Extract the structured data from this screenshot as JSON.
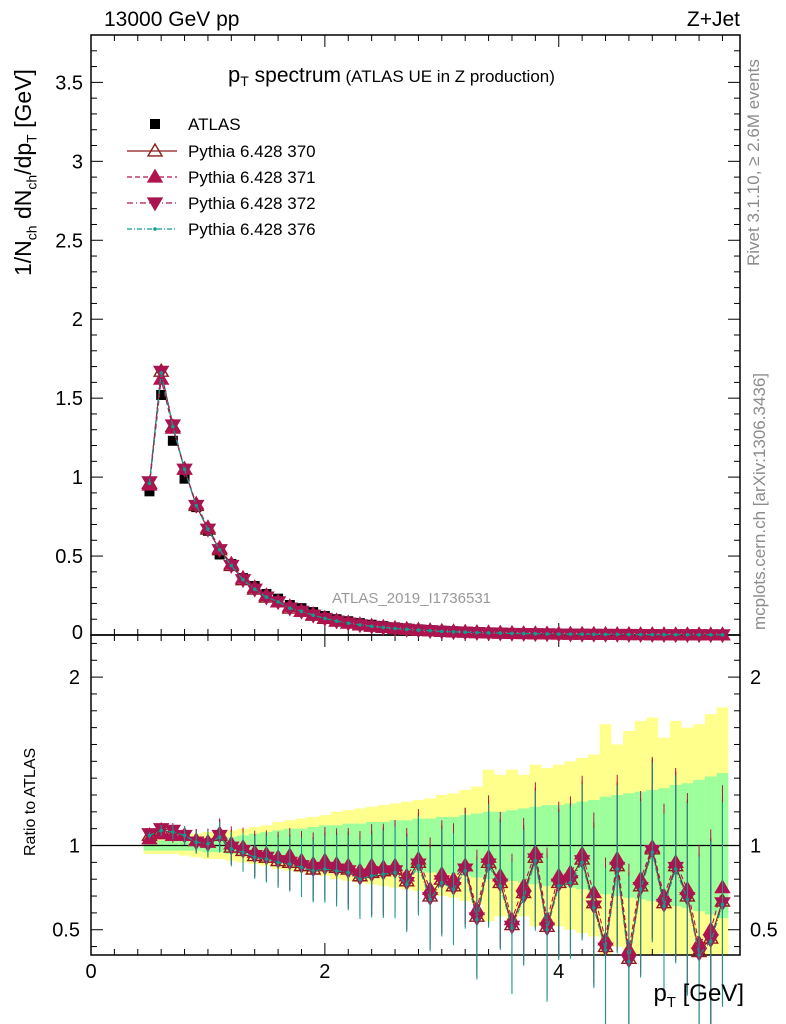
{
  "header": {
    "energy": "13000 GeV pp",
    "process": "Z+Jet"
  },
  "side_labels": {
    "rivet": "Rivet 3.1.10, ≥ 2.6M events",
    "mcplots": "mcplots.cern.ch [arXiv:1306.3436]"
  },
  "watermark": "ATLAS_2019_I1736531",
  "chart_data": [
    {
      "type": "line",
      "title_main": "p",
      "title_sub": "T",
      "title_rest": " spectrum",
      "title_paren": "(ATLAS UE in Z production)",
      "ylabel": "1/N_ch dN_ch/dp_T [GeV]",
      "xlabel": "p_T [GeV]",
      "xlim": [
        0,
        5.55
      ],
      "ylim": [
        0,
        3.8
      ],
      "xticks": [
        0,
        2,
        4
      ],
      "yticks": [
        0.5,
        1,
        1.5,
        2,
        2.5,
        3,
        3.5
      ],
      "legend_position": "top-left",
      "x": [
        0.5,
        0.6,
        0.7,
        0.8,
        0.9,
        1.0,
        1.1,
        1.2,
        1.3,
        1.4,
        1.5,
        1.6,
        1.7,
        1.8,
        1.9,
        2.0,
        2.1,
        2.2,
        2.3,
        2.4,
        2.5,
        2.6,
        2.7,
        2.8,
        2.9,
        3.0,
        3.1,
        3.2,
        3.3,
        3.4,
        3.5,
        3.6,
        3.7,
        3.8,
        3.9,
        4.0,
        4.1,
        4.2,
        4.3,
        4.4,
        4.5,
        4.6,
        4.7,
        4.8,
        4.9,
        5.0,
        5.1,
        5.2,
        5.3,
        5.4
      ],
      "series": [
        {
          "name": "ATLAS",
          "values": [
            0.91,
            1.52,
            1.23,
            0.99,
            0.81,
            0.66,
            0.51,
            0.45,
            0.36,
            0.31,
            0.26,
            0.23,
            0.19,
            0.17,
            0.145,
            0.12,
            0.1,
            0.087,
            0.075,
            0.065,
            0.056,
            0.048,
            0.042,
            0.036,
            0.031,
            0.027,
            0.024,
            0.021,
            0.018,
            0.016,
            0.014,
            0.012,
            0.011,
            0.01,
            0.009,
            0.008,
            0.007,
            0.0063,
            0.0056,
            0.005,
            0.0045,
            0.004,
            0.0036,
            0.0032,
            0.0029,
            0.0026,
            0.0023,
            0.0021,
            0.0019,
            0.0017
          ]
        },
        {
          "name": "Pythia 6.428 370",
          "values": [
            0.96,
            1.67,
            1.32,
            1.05,
            0.82,
            0.67,
            0.54,
            0.44,
            0.35,
            0.29,
            0.24,
            0.21,
            0.17,
            0.15,
            0.125,
            0.105,
            0.088,
            0.075,
            0.064,
            0.055,
            0.048,
            0.041,
            0.036,
            0.031,
            0.027,
            0.023,
            0.02,
            0.018,
            0.015,
            0.013,
            0.012,
            0.01,
            0.009,
            0.008,
            0.007,
            0.006,
            0.0055,
            0.005,
            0.0045,
            0.004,
            0.0035,
            0.003,
            0.0027,
            0.0024,
            0.0021,
            0.0018,
            0.0016,
            0.0014,
            0.0013,
            0.0012
          ]
        },
        {
          "name": "Pythia 6.428 371",
          "values": [
            0.95,
            1.62,
            1.31,
            1.05,
            0.83,
            0.68,
            0.55,
            0.45,
            0.36,
            0.3,
            0.25,
            0.21,
            0.18,
            0.15,
            0.13,
            0.108,
            0.09,
            0.077,
            0.066,
            0.057,
            0.049,
            0.042,
            0.037,
            0.032,
            0.028,
            0.024,
            0.021,
            0.018,
            0.016,
            0.014,
            0.012,
            0.01,
            0.009,
            0.008,
            0.007,
            0.0063,
            0.0056,
            0.005,
            0.0045,
            0.004,
            0.0035,
            0.003,
            0.0027,
            0.0024,
            0.0021,
            0.0018,
            0.0016,
            0.0014,
            0.0013,
            0.0012
          ]
        },
        {
          "name": "Pythia 6.428 372",
          "values": [
            0.97,
            1.67,
            1.33,
            1.05,
            0.82,
            0.67,
            0.54,
            0.44,
            0.35,
            0.29,
            0.24,
            0.21,
            0.17,
            0.15,
            0.125,
            0.105,
            0.088,
            0.075,
            0.064,
            0.055,
            0.048,
            0.041,
            0.036,
            0.031,
            0.027,
            0.023,
            0.02,
            0.018,
            0.015,
            0.013,
            0.012,
            0.01,
            0.009,
            0.008,
            0.007,
            0.006,
            0.0055,
            0.005,
            0.0045,
            0.004,
            0.0035,
            0.003,
            0.0027,
            0.0024,
            0.0021,
            0.0018,
            0.0016,
            0.0014,
            0.0013,
            0.0012
          ]
        },
        {
          "name": "Pythia 6.428 376",
          "values": [
            0.96,
            1.66,
            1.32,
            1.05,
            0.82,
            0.67,
            0.54,
            0.44,
            0.35,
            0.29,
            0.24,
            0.21,
            0.17,
            0.15,
            0.125,
            0.105,
            0.088,
            0.075,
            0.064,
            0.055,
            0.048,
            0.041,
            0.036,
            0.031,
            0.027,
            0.023,
            0.02,
            0.018,
            0.015,
            0.013,
            0.012,
            0.01,
            0.009,
            0.008,
            0.007,
            0.006,
            0.0055,
            0.005,
            0.0045,
            0.004,
            0.0035,
            0.003,
            0.0027,
            0.0024,
            0.0021,
            0.0018,
            0.0016,
            0.0014,
            0.0013,
            0.0012
          ]
        }
      ]
    },
    {
      "type": "line",
      "ylabel": "Ratio to ATLAS",
      "xlabel": "p_T [GeV]",
      "xlim": [
        0,
        5.55
      ],
      "ylim": [
        0.35,
        2.25
      ],
      "yticks": [
        0.5,
        1,
        2
      ],
      "x": [
        0.5,
        0.6,
        0.7,
        0.8,
        0.9,
        1.0,
        1.1,
        1.2,
        1.3,
        1.4,
        1.5,
        1.6,
        1.7,
        1.8,
        1.9,
        2.0,
        2.1,
        2.2,
        2.3,
        2.4,
        2.5,
        2.6,
        2.7,
        2.8,
        2.9,
        3.0,
        3.1,
        3.2,
        3.3,
        3.4,
        3.5,
        3.6,
        3.7,
        3.8,
        3.9,
        4.0,
        4.1,
        4.2,
        4.3,
        4.4,
        4.5,
        4.6,
        4.7,
        4.8,
        4.9,
        5.0,
        5.1,
        5.2,
        5.3,
        5.4
      ],
      "band_stat": [
        0.03,
        0.03,
        0.03,
        0.03,
        0.03,
        0.04,
        0.04,
        0.05,
        0.06,
        0.07,
        0.08,
        0.09,
        0.1,
        0.1,
        0.11,
        0.12,
        0.12,
        0.13,
        0.13,
        0.14,
        0.14,
        0.15,
        0.15,
        0.16,
        0.16,
        0.17,
        0.17,
        0.18,
        0.19,
        0.2,
        0.2,
        0.21,
        0.22,
        0.23,
        0.24,
        0.24,
        0.25,
        0.26,
        0.27,
        0.29,
        0.3,
        0.31,
        0.32,
        0.33,
        0.34,
        0.36,
        0.37,
        0.39,
        0.41,
        0.43
      ],
      "band_total": [
        0.05,
        0.05,
        0.05,
        0.06,
        0.07,
        0.08,
        0.08,
        0.09,
        0.1,
        0.11,
        0.12,
        0.14,
        0.15,
        0.16,
        0.17,
        0.18,
        0.2,
        0.21,
        0.22,
        0.23,
        0.24,
        0.25,
        0.26,
        0.27,
        0.28,
        0.3,
        0.31,
        0.33,
        0.35,
        0.45,
        0.42,
        0.45,
        0.42,
        0.48,
        0.46,
        0.48,
        0.5,
        0.52,
        0.54,
        0.72,
        0.6,
        0.68,
        0.74,
        0.76,
        0.64,
        0.74,
        0.7,
        0.72,
        0.78,
        0.82
      ],
      "series": [
        {
          "name": "Pythia 6.428 370",
          "values": [
            1.06,
            1.09,
            1.08,
            1.06,
            1.03,
            1.02,
            1.06,
            0.99,
            0.97,
            0.94,
            0.93,
            0.91,
            0.9,
            0.88,
            0.86,
            0.88,
            0.87,
            0.86,
            0.82,
            0.84,
            0.85,
            0.86,
            0.79,
            0.9,
            0.7,
            0.8,
            0.76,
            0.88,
            0.58,
            0.9,
            0.78,
            0.53,
            0.72,
            0.93,
            0.52,
            0.78,
            0.8,
            0.92,
            0.66,
            0.4,
            0.88,
            0.33,
            0.76,
            0.98,
            0.66,
            0.88,
            0.7,
            0.37,
            0.45,
            0.67
          ]
        },
        {
          "name": "Pythia 6.428 371",
          "values": [
            1.04,
            1.07,
            1.06,
            1.06,
            1.03,
            1.02,
            1.07,
            1.01,
            0.99,
            0.96,
            0.95,
            0.93,
            0.94,
            0.91,
            0.89,
            0.91,
            0.89,
            0.88,
            0.85,
            0.88,
            0.87,
            0.88,
            0.82,
            0.92,
            0.74,
            0.83,
            0.8,
            0.88,
            0.62,
            0.93,
            0.82,
            0.56,
            0.76,
            0.96,
            0.56,
            0.82,
            0.84,
            0.95,
            0.72,
            0.44,
            0.92,
            0.38,
            0.8,
            0.99,
            0.7,
            0.9,
            0.74,
            0.42,
            0.5,
            0.75
          ]
        },
        {
          "name": "Pythia 6.428 372",
          "values": [
            1.07,
            1.1,
            1.09,
            1.06,
            1.02,
            1.01,
            1.06,
            0.99,
            0.97,
            0.94,
            0.93,
            0.91,
            0.9,
            0.88,
            0.86,
            0.87,
            0.86,
            0.85,
            0.81,
            0.83,
            0.84,
            0.85,
            0.78,
            0.89,
            0.69,
            0.79,
            0.75,
            0.86,
            0.57,
            0.89,
            0.77,
            0.52,
            0.7,
            0.92,
            0.51,
            0.77,
            0.79,
            0.91,
            0.64,
            0.39,
            0.87,
            0.32,
            0.75,
            0.97,
            0.65,
            0.87,
            0.69,
            0.36,
            0.44,
            0.66
          ]
        },
        {
          "name": "Pythia 6.428 376",
          "values": [
            1.06,
            1.09,
            1.08,
            1.06,
            1.02,
            1.01,
            1.05,
            0.98,
            0.96,
            0.93,
            0.92,
            0.9,
            0.89,
            0.87,
            0.85,
            0.86,
            0.85,
            0.84,
            0.8,
            0.82,
            0.83,
            0.84,
            0.77,
            0.88,
            0.68,
            0.78,
            0.74,
            0.85,
            0.56,
            0.88,
            0.76,
            0.51,
            0.69,
            0.91,
            0.5,
            0.76,
            0.78,
            0.9,
            0.63,
            0.38,
            0.86,
            0.31,
            0.74,
            0.96,
            0.64,
            0.86,
            0.68,
            0.35,
            0.43,
            0.65
          ]
        }
      ]
    }
  ],
  "colors": {
    "atlas": "#000000",
    "p370": "#8b1a1a",
    "p371": "#b2124e",
    "p372": "#a81550",
    "p376": "#0e9e8e",
    "band_stat": "#9cff9c",
    "band_total": "#ffff8c"
  }
}
